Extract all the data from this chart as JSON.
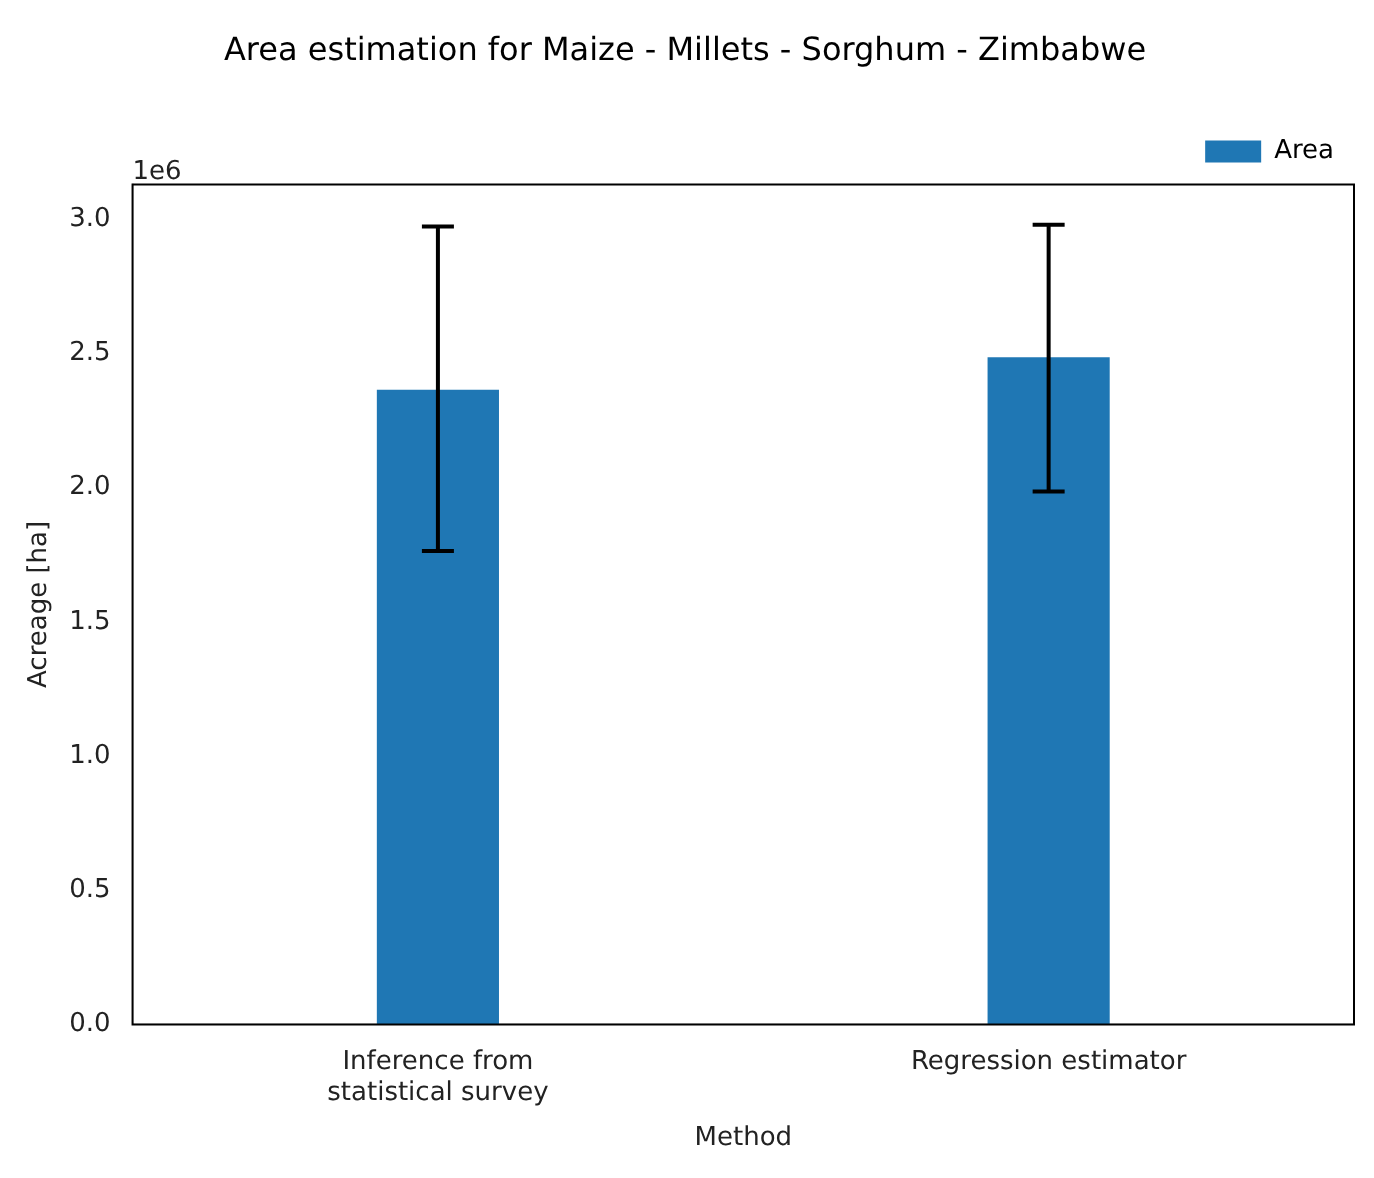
{
  "chart_data": {
    "type": "bar",
    "title": "Area estimation for Maize - Millets - Sorghum - Zimbabwe",
    "xlabel": "Method",
    "ylabel": "Acreage [ha]",
    "categories": [
      "Inference from\nstatistical survey",
      "Regression estimator"
    ],
    "series": [
      {
        "name": "Area",
        "color": "#1f77b4",
        "values": [
          2.365,
          2.486
        ],
        "errors": [
          [
            1.764,
            2.973
          ],
          [
            1.986,
            2.98
          ]
        ]
      }
    ],
    "ylim": [
      0,
      3.13
    ],
    "yticks": [
      {
        "value": 0,
        "label": "0.0"
      },
      {
        "value": 0.5,
        "label": "0.5"
      },
      {
        "value": 1,
        "label": "1.0"
      },
      {
        "value": 1.5,
        "label": "1.5"
      },
      {
        "value": 2,
        "label": "2.0"
      },
      {
        "value": 2.5,
        "label": "2.5"
      },
      {
        "value": 3,
        "label": "3.0"
      }
    ],
    "annotations": [
      "1e6"
    ],
    "grid": false,
    "legend": "top right"
  }
}
